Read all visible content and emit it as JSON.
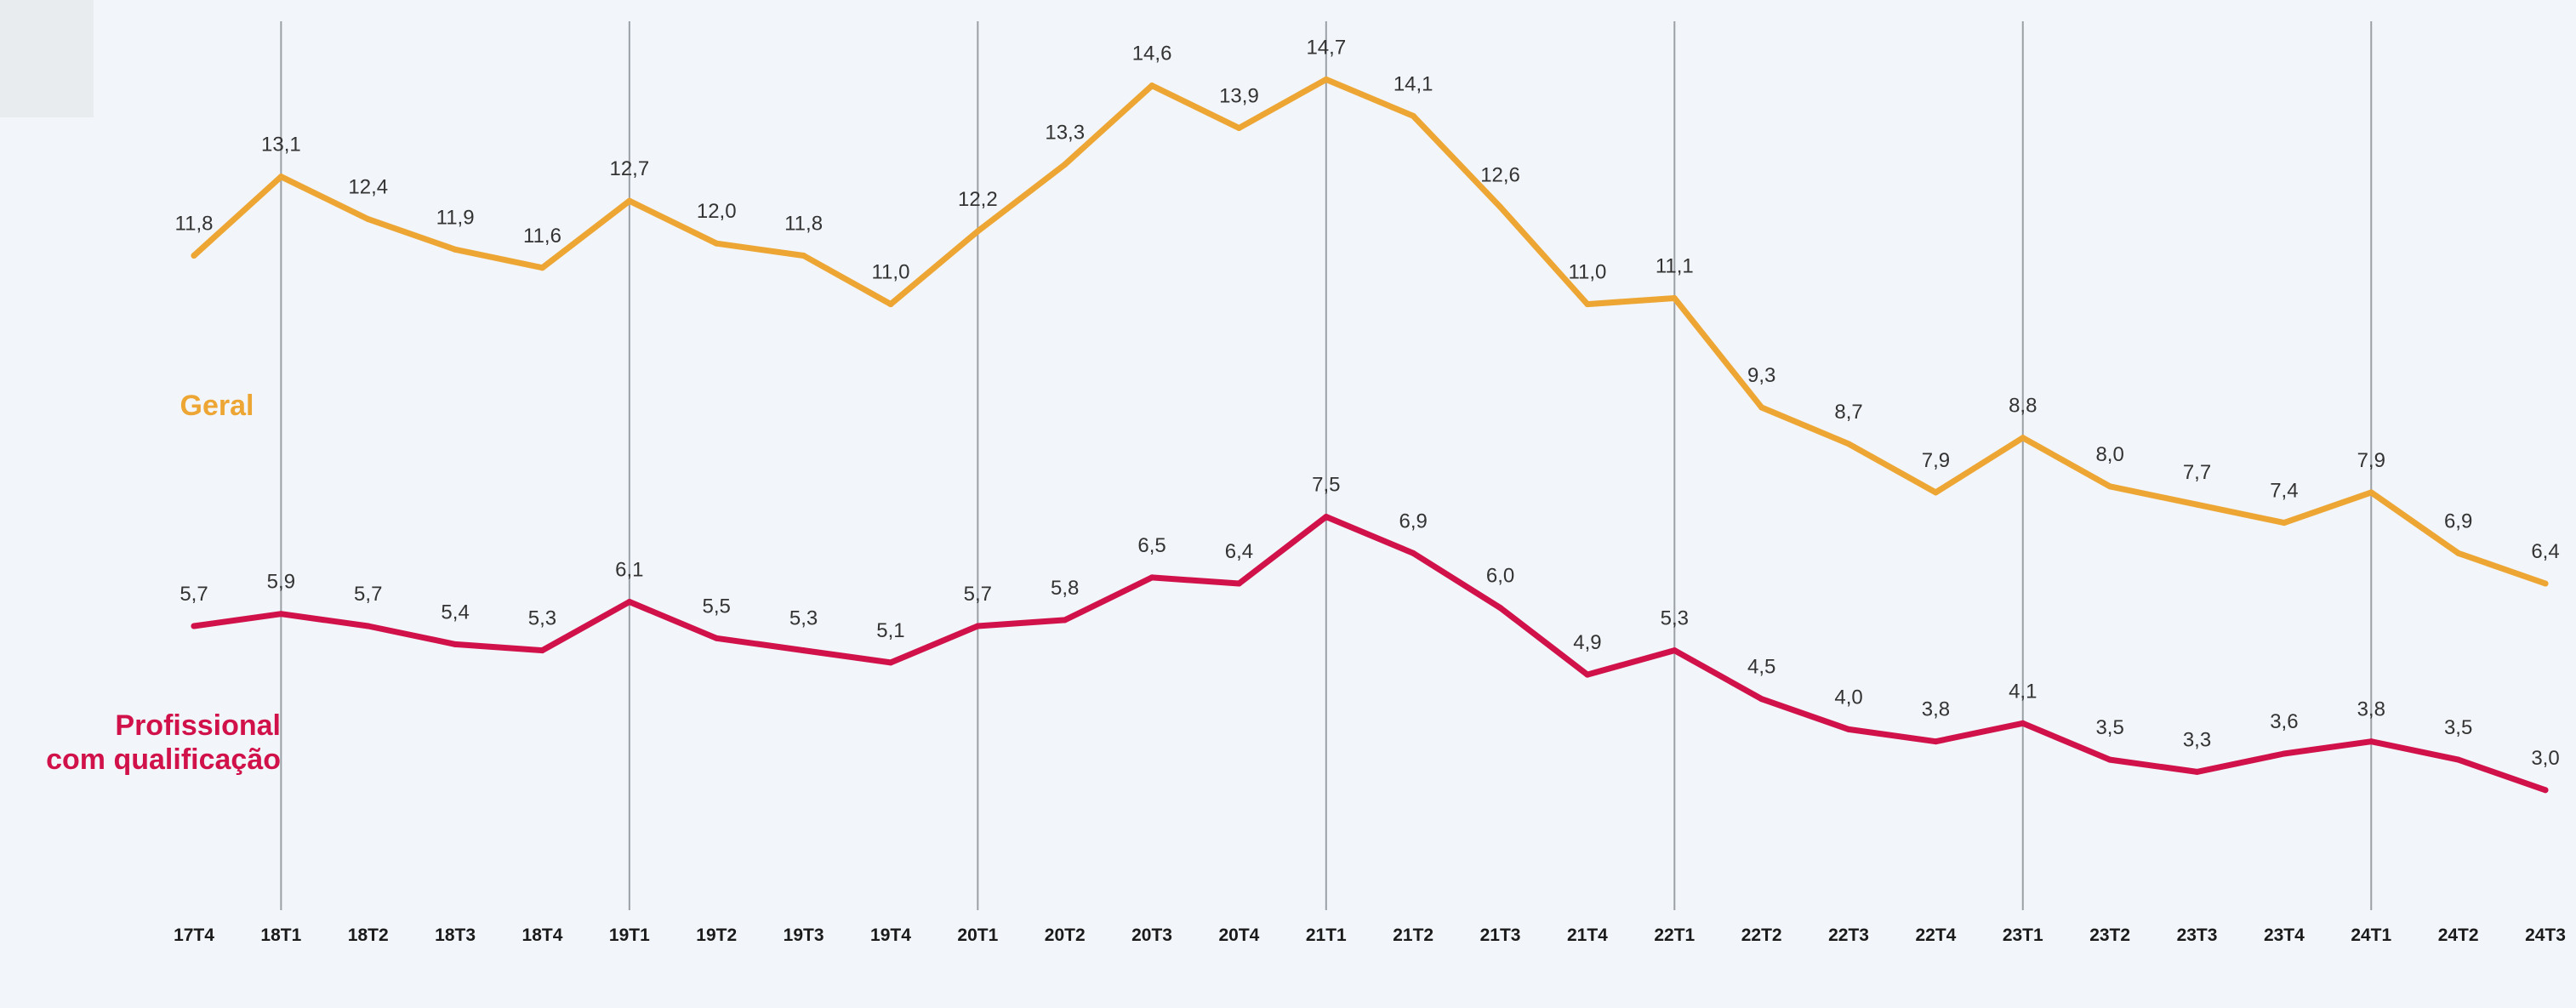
{
  "chart_data": {
    "type": "line",
    "title": "",
    "xlabel": "",
    "ylabel": "",
    "ylim": [
      0,
      16
    ],
    "grid": false,
    "categories": [
      "17T4",
      "18T1",
      "18T2",
      "18T3",
      "18T4",
      "19T1",
      "19T2",
      "19T3",
      "19T4",
      "20T1",
      "20T2",
      "20T3",
      "20T4",
      "21T1",
      "21T2",
      "21T3",
      "21T4",
      "22T1",
      "22T2",
      "22T3",
      "22T4",
      "23T1",
      "23T2",
      "23T3",
      "23T4",
      "24T1",
      "24T2",
      "24T3"
    ],
    "year_separators_after": [
      "17T4",
      "18T4",
      "19T4",
      "20T4",
      "21T4",
      "22T4",
      "23T4"
    ],
    "series": [
      {
        "name": "Geral",
        "color": "#eda633",
        "values": [
          11.8,
          13.1,
          12.4,
          11.9,
          11.6,
          12.7,
          12.0,
          11.8,
          11.0,
          12.2,
          13.3,
          14.6,
          13.9,
          14.7,
          14.1,
          12.6,
          11.0,
          11.1,
          9.3,
          8.7,
          7.9,
          8.8,
          8.0,
          7.7,
          7.4,
          7.9,
          6.9,
          6.4
        ],
        "labels": [
          "11,8",
          "13,1",
          "12,4",
          "11,9",
          "11,6",
          "12,7",
          "12,0",
          "11,8",
          "11,0",
          "12,2",
          "13,3",
          "14,6",
          "13,9",
          "14,7",
          "14,1",
          "12,6",
          "11,0",
          "11,1",
          "9,3",
          "8,7",
          "7,9",
          "8,8",
          "8,0",
          "7,7",
          "7,4",
          "7,9",
          "6,9",
          "6,4"
        ]
      },
      {
        "name_lines": [
          "Profissional",
          "com qualificação"
        ],
        "color": "#d1124a",
        "values": [
          5.7,
          5.9,
          5.7,
          5.4,
          5.3,
          6.1,
          5.5,
          5.3,
          5.1,
          5.7,
          5.8,
          6.5,
          6.4,
          7.5,
          6.9,
          6.0,
          4.9,
          5.3,
          4.5,
          4.0,
          3.8,
          4.1,
          3.5,
          3.3,
          3.6,
          3.8,
          3.5,
          3.0
        ],
        "labels": [
          "5,7",
          "5,9",
          "5,7",
          "5,4",
          "5,3",
          "6,1",
          "5,5",
          "5,3",
          "5,1",
          "5,7",
          "5,8",
          "6,5",
          "6,4",
          "7,5",
          "6,9",
          "6,0",
          "4,9",
          "5,3",
          "4,5",
          "4,0",
          "3,8",
          "4,1",
          "3,5",
          "3,3",
          "3,6",
          "3,8",
          "3,5",
          "3,0"
        ]
      }
    ]
  }
}
